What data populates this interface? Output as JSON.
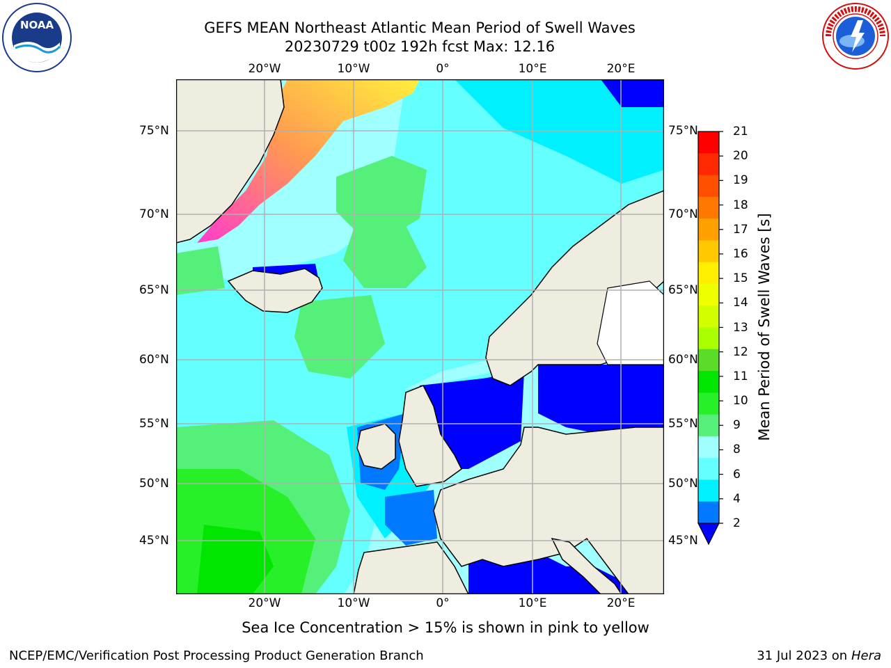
{
  "header": {
    "title_line1": "GEFS MEAN Northeast Atlantic Mean Period of Swell Waves",
    "title_line2": "20230729 t00z 192h fcst   Max: 12.16"
  },
  "logos": {
    "left": {
      "name": "noaa-logo",
      "text": "NOAA",
      "ring_text": "NATIONAL OCEANIC AND ATMOSPHERIC ADMINISTRATION · U.S. DEPARTMENT OF COMMERCE"
    },
    "right": {
      "name": "nws-logo",
      "ring_text": "NATIONAL WEATHER SERVICE"
    }
  },
  "map": {
    "lon_ticks": [
      "20°W",
      "10°W",
      "0°",
      "10°E",
      "20°E"
    ],
    "lat_ticks": [
      "75°N",
      "70°N",
      "65°N",
      "60°N",
      "55°N",
      "50°N",
      "45°N"
    ],
    "colors": {
      "land": "#efeddf",
      "ice_pink": "#ff3ccd",
      "ice_yellow": "#fff03c",
      "grid": "#b0b0b0"
    }
  },
  "colorbar": {
    "label": "Mean Period of Swell Waves [s]",
    "ticks": [
      "21",
      "20",
      "19",
      "18",
      "17",
      "16",
      "15",
      "14",
      "13",
      "12",
      "11",
      "10",
      "9",
      "8",
      "6",
      "4",
      "2"
    ],
    "colors_top_to_bottom": [
      "#ff0000",
      "#ff2800",
      "#ff5000",
      "#ff7800",
      "#ffa000",
      "#ffc800",
      "#ffef00",
      "#f0ff00",
      "#d2ff00",
      "#aaff00",
      "#5adc28",
      "#00e600",
      "#28f028",
      "#55f07a",
      "#a0ffff",
      "#64ffff",
      "#00f0ff",
      "#0078ff"
    ],
    "under_color": "#0000ff"
  },
  "footer": {
    "note": "Sea Ice Concentration > 15% is shown in pink to yellow",
    "left": "NCEP/EMC/Verification Post Processing Product Generation Branch",
    "right_date": "31 Jul 2023 on",
    "right_host": "Hera"
  }
}
